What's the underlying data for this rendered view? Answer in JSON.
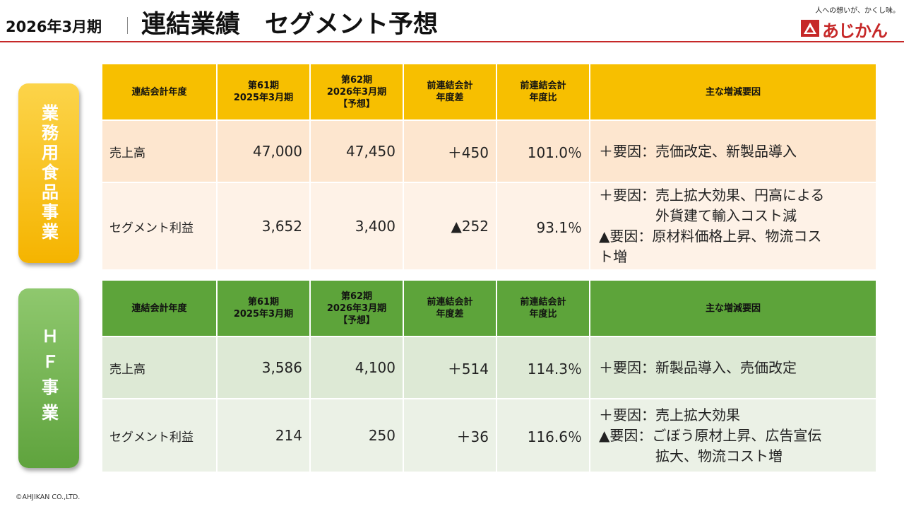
{
  "header": {
    "period": "2026年3月期",
    "title": "連結業績　セグメント予想"
  },
  "logo": {
    "tagline": "人への想いが、かくし味。",
    "brand": "あじかん"
  },
  "segments": [
    {
      "label": "業務用食品事業",
      "columns": [
        "連結会計年度",
        "第61期\n2025年3月期",
        "第62期\n2026年3月期\n【予想】",
        "前連結会計\n年度差",
        "前連結会計\n年度比",
        "主な増減要因"
      ],
      "rows": [
        {
          "item": "売上高",
          "prev": "47,000",
          "forecast": "47,450",
          "diff": "＋450",
          "ratio": "101.0％",
          "reasons": [
            "＋要因：売価改定、新製品導入"
          ]
        },
        {
          "item": "セグメント利益",
          "prev": "3,652",
          "forecast": "3,400",
          "diff": "▲252",
          "ratio": "93.1％",
          "reasons": [
            "＋要因：売上拡大効果、円高による",
            "　　　　外貨建て輸入コスト減",
            "▲要因：原材料価格上昇、物流コス",
            "ト増"
          ]
        }
      ]
    },
    {
      "label": "ＨＦ事業",
      "columns": [
        "連結会計年度",
        "第61期\n2025年3月期",
        "第62期\n2026年3月期\n【予想】",
        "前連結会計\n年度差",
        "前連結会計\n年度比",
        "主な増減要因"
      ],
      "rows": [
        {
          "item": "売上高",
          "prev": "3,586",
          "forecast": "4,100",
          "diff": "＋514",
          "ratio": "114.3％",
          "reasons": [
            "＋要因：新製品導入、売価改定"
          ]
        },
        {
          "item": "セグメント利益",
          "prev": "214",
          "forecast": "250",
          "diff": "＋36",
          "ratio": "116.6％",
          "reasons": [
            "＋要因：売上拡大効果",
            "▲要因：ごぼう原材上昇、広告宣伝",
            "　　　　拡大、物流コスト増"
          ]
        }
      ]
    }
  ],
  "footer": {
    "copyright": "©AHJIKAN CO.,LTD."
  },
  "colors": {
    "accent_red": "#c62828",
    "segment1_header": "#f7bf00",
    "segment2_header": "#5da43a"
  }
}
